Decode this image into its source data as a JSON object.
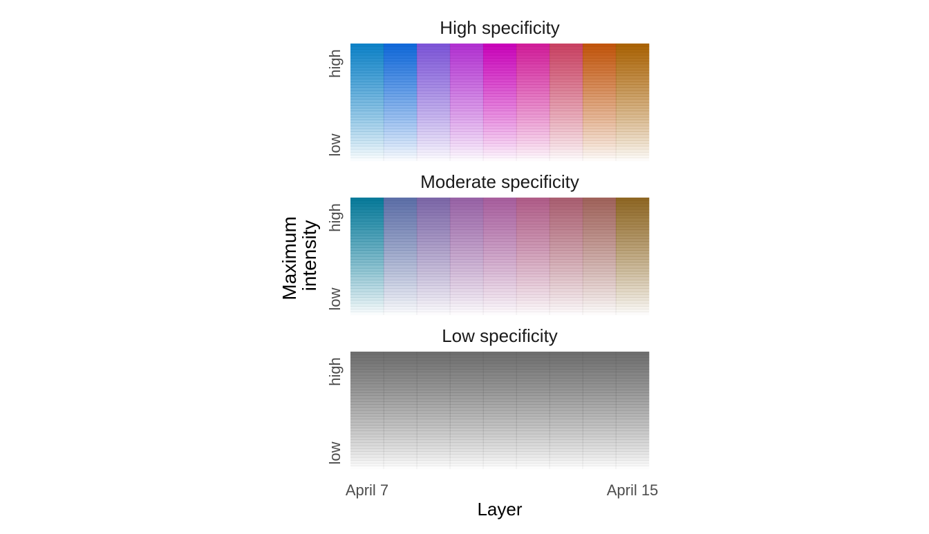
{
  "chart_data": {
    "type": "heatmap",
    "xlabel": "Layer",
    "ylabel": "Maximum intensity",
    "x_ticks": [
      {
        "label": "April 7",
        "layer": 1
      },
      {
        "label": "April 15",
        "layer": 9
      }
    ],
    "y_ticks": [
      "low",
      "high"
    ],
    "layers": [
      1,
      2,
      3,
      4,
      5,
      6,
      7,
      8,
      9
    ],
    "intensity_levels": 40,
    "grid": true,
    "panels": [
      {
        "title": "High specificity",
        "layer_colors": [
          "#0a80c6",
          "#0d66d8",
          "#7a52d6",
          "#b02ed0",
          "#c800b8",
          "#d01a98",
          "#c83e60",
          "#c05208",
          "#a86000"
        ]
      },
      {
        "title": "Moderate specificity",
        "layer_colors": [
          "#037898",
          "#5a6ca6",
          "#7a64a6",
          "#9660a4",
          "#a65c9c",
          "#ae5a86",
          "#a85c6e",
          "#9e6058",
          "#8c6420"
        ]
      },
      {
        "title": "Low specificity",
        "layer_colors": [
          "#6b6b6b",
          "#6b6b6b",
          "#6b6b6b",
          "#6b6b6b",
          "#6b6b6b",
          "#6b6b6b",
          "#6b6b6b",
          "#6b6b6b",
          "#6b6b6b"
        ]
      }
    ]
  }
}
